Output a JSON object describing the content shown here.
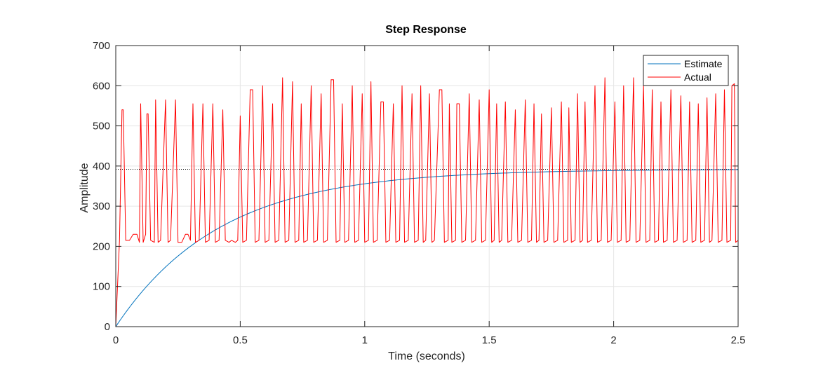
{
  "chart_data": {
    "type": "line",
    "title": "Step Response",
    "xlabel": "Time (seconds)",
    "ylabel": "Amplitude",
    "xlim": [
      0,
      2.5
    ],
    "ylim": [
      0,
      700
    ],
    "xticks": [
      0,
      0.5,
      1,
      1.5,
      2,
      2.5
    ],
    "xtick_labels": [
      "0",
      "0.5",
      "1",
      "1.5",
      "2",
      "2.5"
    ],
    "yticks": [
      0,
      100,
      200,
      300,
      400,
      500,
      600,
      700
    ],
    "ytick_labels": [
      "0",
      "100",
      "200",
      "300",
      "400",
      "500",
      "600",
      "700"
    ],
    "grid": true,
    "legend_position": "top-right",
    "steady_state_reference": 392,
    "series": [
      {
        "name": "Estimate",
        "color": "#0072BD",
        "style": "first-order step response",
        "final_value": 392,
        "time_constant": 0.42
      },
      {
        "name": "Actual",
        "color": "#FF0000",
        "points": [
          [
            0.0,
            0
          ],
          [
            0.015,
            215
          ],
          [
            0.025,
            540
          ],
          [
            0.03,
            540
          ],
          [
            0.04,
            215
          ],
          [
            0.055,
            215
          ],
          [
            0.07,
            230
          ],
          [
            0.085,
            230
          ],
          [
            0.095,
            210
          ],
          [
            0.1,
            555
          ],
          [
            0.11,
            210
          ],
          [
            0.12,
            230
          ],
          [
            0.125,
            530
          ],
          [
            0.13,
            530
          ],
          [
            0.14,
            215
          ],
          [
            0.155,
            210
          ],
          [
            0.16,
            565
          ],
          [
            0.17,
            210
          ],
          [
            0.18,
            215
          ],
          [
            0.2,
            565
          ],
          [
            0.21,
            210
          ],
          [
            0.22,
            215
          ],
          [
            0.24,
            565
          ],
          [
            0.25,
            210
          ],
          [
            0.265,
            210
          ],
          [
            0.28,
            230
          ],
          [
            0.29,
            230
          ],
          [
            0.3,
            215
          ],
          [
            0.31,
            555
          ],
          [
            0.32,
            210
          ],
          [
            0.335,
            215
          ],
          [
            0.35,
            555
          ],
          [
            0.36,
            210
          ],
          [
            0.375,
            215
          ],
          [
            0.39,
            555
          ],
          [
            0.4,
            210
          ],
          [
            0.415,
            215
          ],
          [
            0.43,
            540
          ],
          [
            0.44,
            215
          ],
          [
            0.455,
            210
          ],
          [
            0.465,
            215
          ],
          [
            0.48,
            210
          ],
          [
            0.49,
            215
          ],
          [
            0.5,
            525
          ],
          [
            0.51,
            210
          ],
          [
            0.525,
            215
          ],
          [
            0.54,
            590
          ],
          [
            0.55,
            590
          ],
          [
            0.56,
            210
          ],
          [
            0.575,
            215
          ],
          [
            0.59,
            600
          ],
          [
            0.6,
            210
          ],
          [
            0.615,
            215
          ],
          [
            0.63,
            555
          ],
          [
            0.64,
            210
          ],
          [
            0.655,
            215
          ],
          [
            0.67,
            620
          ],
          [
            0.68,
            210
          ],
          [
            0.695,
            215
          ],
          [
            0.71,
            610
          ],
          [
            0.72,
            210
          ],
          [
            0.735,
            215
          ],
          [
            0.745,
            555
          ],
          [
            0.755,
            210
          ],
          [
            0.77,
            215
          ],
          [
            0.785,
            600
          ],
          [
            0.795,
            210
          ],
          [
            0.81,
            215
          ],
          [
            0.825,
            580
          ],
          [
            0.835,
            210
          ],
          [
            0.85,
            215
          ],
          [
            0.865,
            615
          ],
          [
            0.875,
            615
          ],
          [
            0.885,
            210
          ],
          [
            0.9,
            215
          ],
          [
            0.91,
            555
          ],
          [
            0.92,
            210
          ],
          [
            0.935,
            215
          ],
          [
            0.95,
            600
          ],
          [
            0.96,
            210
          ],
          [
            0.975,
            215
          ],
          [
            0.99,
            580
          ],
          [
            1.0,
            210
          ],
          [
            1.015,
            215
          ],
          [
            1.025,
            610
          ],
          [
            1.035,
            210
          ],
          [
            1.05,
            215
          ],
          [
            1.065,
            560
          ],
          [
            1.075,
            560
          ],
          [
            1.085,
            210
          ],
          [
            1.1,
            215
          ],
          [
            1.115,
            555
          ],
          [
            1.125,
            210
          ],
          [
            1.14,
            215
          ],
          [
            1.15,
            600
          ],
          [
            1.16,
            210
          ],
          [
            1.175,
            215
          ],
          [
            1.19,
            580
          ],
          [
            1.2,
            210
          ],
          [
            1.215,
            215
          ],
          [
            1.225,
            600
          ],
          [
            1.235,
            210
          ],
          [
            1.245,
            215
          ],
          [
            1.26,
            580
          ],
          [
            1.27,
            210
          ],
          [
            1.28,
            215
          ],
          [
            1.3,
            590
          ],
          [
            1.31,
            590
          ],
          [
            1.32,
            210
          ],
          [
            1.335,
            215
          ],
          [
            1.34,
            555
          ],
          [
            1.35,
            210
          ],
          [
            1.365,
            215
          ],
          [
            1.37,
            555
          ],
          [
            1.38,
            555
          ],
          [
            1.39,
            210
          ],
          [
            1.405,
            215
          ],
          [
            1.42,
            580
          ],
          [
            1.43,
            210
          ],
          [
            1.445,
            215
          ],
          [
            1.46,
            565
          ],
          [
            1.47,
            210
          ],
          [
            1.485,
            215
          ],
          [
            1.5,
            590
          ],
          [
            1.51,
            210
          ],
          [
            1.52,
            215
          ],
          [
            1.53,
            555
          ],
          [
            1.54,
            210
          ],
          [
            1.55,
            215
          ],
          [
            1.565,
            560
          ],
          [
            1.575,
            210
          ],
          [
            1.59,
            215
          ],
          [
            1.605,
            540
          ],
          [
            1.615,
            210
          ],
          [
            1.63,
            215
          ],
          [
            1.645,
            565
          ],
          [
            1.655,
            210
          ],
          [
            1.67,
            215
          ],
          [
            1.68,
            555
          ],
          [
            1.69,
            210
          ],
          [
            1.7,
            215
          ],
          [
            1.71,
            530
          ],
          [
            1.72,
            210
          ],
          [
            1.735,
            215
          ],
          [
            1.75,
            545
          ],
          [
            1.76,
            210
          ],
          [
            1.775,
            215
          ],
          [
            1.79,
            560
          ],
          [
            1.8,
            210
          ],
          [
            1.815,
            215
          ],
          [
            1.82,
            545
          ],
          [
            1.83,
            210
          ],
          [
            1.845,
            215
          ],
          [
            1.855,
            580
          ],
          [
            1.865,
            210
          ],
          [
            1.875,
            215
          ],
          [
            1.885,
            560
          ],
          [
            1.895,
            210
          ],
          [
            1.91,
            215
          ],
          [
            1.925,
            600
          ],
          [
            1.935,
            210
          ],
          [
            1.95,
            215
          ],
          [
            1.965,
            620
          ],
          [
            1.975,
            210
          ],
          [
            1.99,
            215
          ],
          [
            2.005,
            560
          ],
          [
            2.015,
            210
          ],
          [
            2.03,
            215
          ],
          [
            2.04,
            600
          ],
          [
            2.05,
            210
          ],
          [
            2.065,
            215
          ],
          [
            2.08,
            620
          ],
          [
            2.09,
            210
          ],
          [
            2.105,
            215
          ],
          [
            2.12,
            600
          ],
          [
            2.13,
            210
          ],
          [
            2.145,
            215
          ],
          [
            2.155,
            590
          ],
          [
            2.165,
            210
          ],
          [
            2.18,
            215
          ],
          [
            2.19,
            560
          ],
          [
            2.2,
            210
          ],
          [
            2.215,
            215
          ],
          [
            2.23,
            590
          ],
          [
            2.24,
            210
          ],
          [
            2.255,
            215
          ],
          [
            2.27,
            575
          ],
          [
            2.28,
            210
          ],
          [
            2.295,
            215
          ],
          [
            2.305,
            560
          ],
          [
            2.315,
            210
          ],
          [
            2.33,
            215
          ],
          [
            2.34,
            555
          ],
          [
            2.35,
            210
          ],
          [
            2.365,
            215
          ],
          [
            2.375,
            570
          ],
          [
            2.385,
            210
          ],
          [
            2.395,
            215
          ],
          [
            2.41,
            580
          ],
          [
            2.42,
            210
          ],
          [
            2.435,
            215
          ],
          [
            2.445,
            590
          ],
          [
            2.455,
            210
          ],
          [
            2.47,
            215
          ],
          [
            2.475,
            600
          ],
          [
            2.485,
            605
          ],
          [
            2.49,
            210
          ],
          [
            2.5,
            215
          ]
        ]
      }
    ]
  }
}
